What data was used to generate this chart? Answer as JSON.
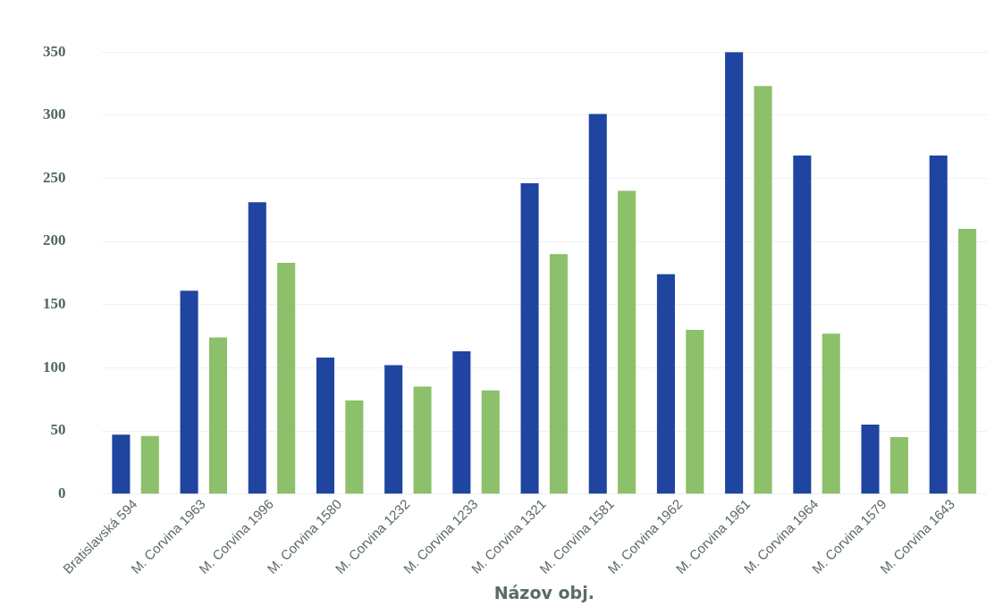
{
  "chart_data": {
    "type": "bar",
    "xlabel": "Názov obj.",
    "categories": [
      "Bratislavská 594",
      "M. Corvina 1963",
      "M. Corvina 1996",
      "M. Corvina 1580",
      "M. Corvina 1232",
      "M. Corvina 1233",
      "M. Corvina 1321",
      "M. Corvina 1581",
      "M. Corvina 1962",
      "M. Corvina 1961",
      "M. Corvina 1964",
      "M. Corvina 1579",
      "M. Corvina 1643"
    ],
    "series": [
      {
        "color": "#1f45a0",
        "values": [
          47,
          161,
          231,
          108,
          102,
          113,
          246,
          301,
          174,
          350,
          268,
          55,
          268
        ]
      },
      {
        "color": "#8cc06a",
        "values": [
          46,
          124,
          183,
          74,
          85,
          82,
          190,
          240,
          130,
          323,
          127,
          45,
          210
        ]
      }
    ],
    "ylim": [
      0,
      350
    ],
    "yticks": [
      0,
      50,
      100,
      150,
      200,
      250,
      300,
      350
    ],
    "grid": "y",
    "legend": false
  }
}
